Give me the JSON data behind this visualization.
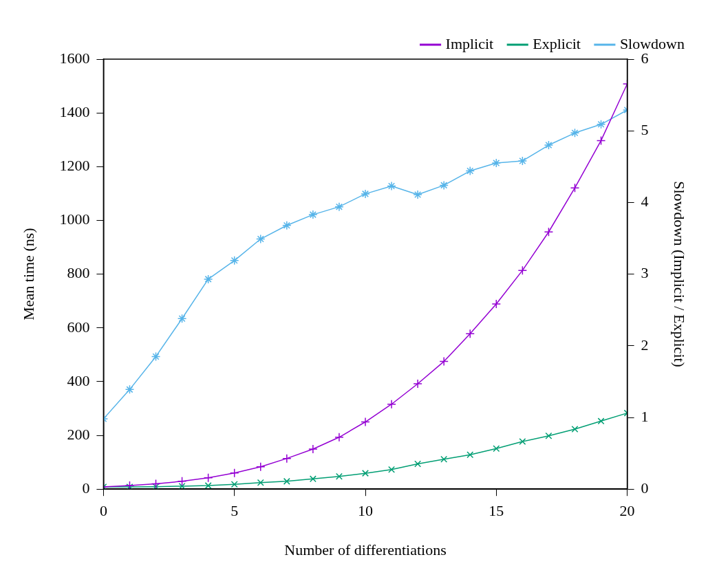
{
  "chart_data": {
    "type": "line",
    "xlabel": "Number of differentiations",
    "ylabel": "Mean time (ns)",
    "y2label": "Slowdown (Implicit / Explicit)",
    "x": [
      0,
      1,
      2,
      3,
      4,
      5,
      6,
      7,
      8,
      9,
      10,
      11,
      12,
      13,
      14,
      15,
      16,
      17,
      18,
      19,
      20
    ],
    "series": [
      {
        "name": "Implicit",
        "color": "#9400d3",
        "marker": "cross",
        "values": [
          8,
          13,
          20,
          29,
          42,
          60,
          83,
          114,
          149,
          193,
          250,
          316,
          392,
          475,
          578,
          689,
          814,
          957,
          1121,
          1297,
          1508
        ]
      },
      {
        "name": "Explicit",
        "color": "#009e73",
        "marker": "cross",
        "values": [
          8,
          8,
          9,
          11,
          13,
          18,
          24,
          29,
          38,
          47,
          59,
          73,
          94,
          111,
          128,
          151,
          177,
          198,
          223,
          253,
          283
        ]
      },
      {
        "name": "Slowdown",
        "color": "#56b4e9",
        "marker": "cross",
        "axis": "y2",
        "values": [
          0.98,
          1.39,
          1.85,
          2.38,
          2.93,
          3.19,
          3.49,
          3.68,
          3.83,
          3.94,
          4.12,
          4.23,
          4.11,
          4.24,
          4.44,
          4.55,
          4.58,
          4.8,
          4.97,
          5.09,
          5.29
        ]
      }
    ],
    "xlim": [
      0,
      20
    ],
    "xticks": [
      0,
      5,
      10,
      15,
      20
    ],
    "ylim": [
      0,
      1600
    ],
    "yticks": [
      0,
      200,
      400,
      600,
      800,
      1000,
      1200,
      1400,
      1600
    ],
    "y2lim": [
      0,
      6
    ],
    "y2ticks": [
      0,
      1,
      2,
      3,
      4,
      5,
      6
    ],
    "grid": false,
    "legend": "top right",
    "line_style": "solid"
  }
}
